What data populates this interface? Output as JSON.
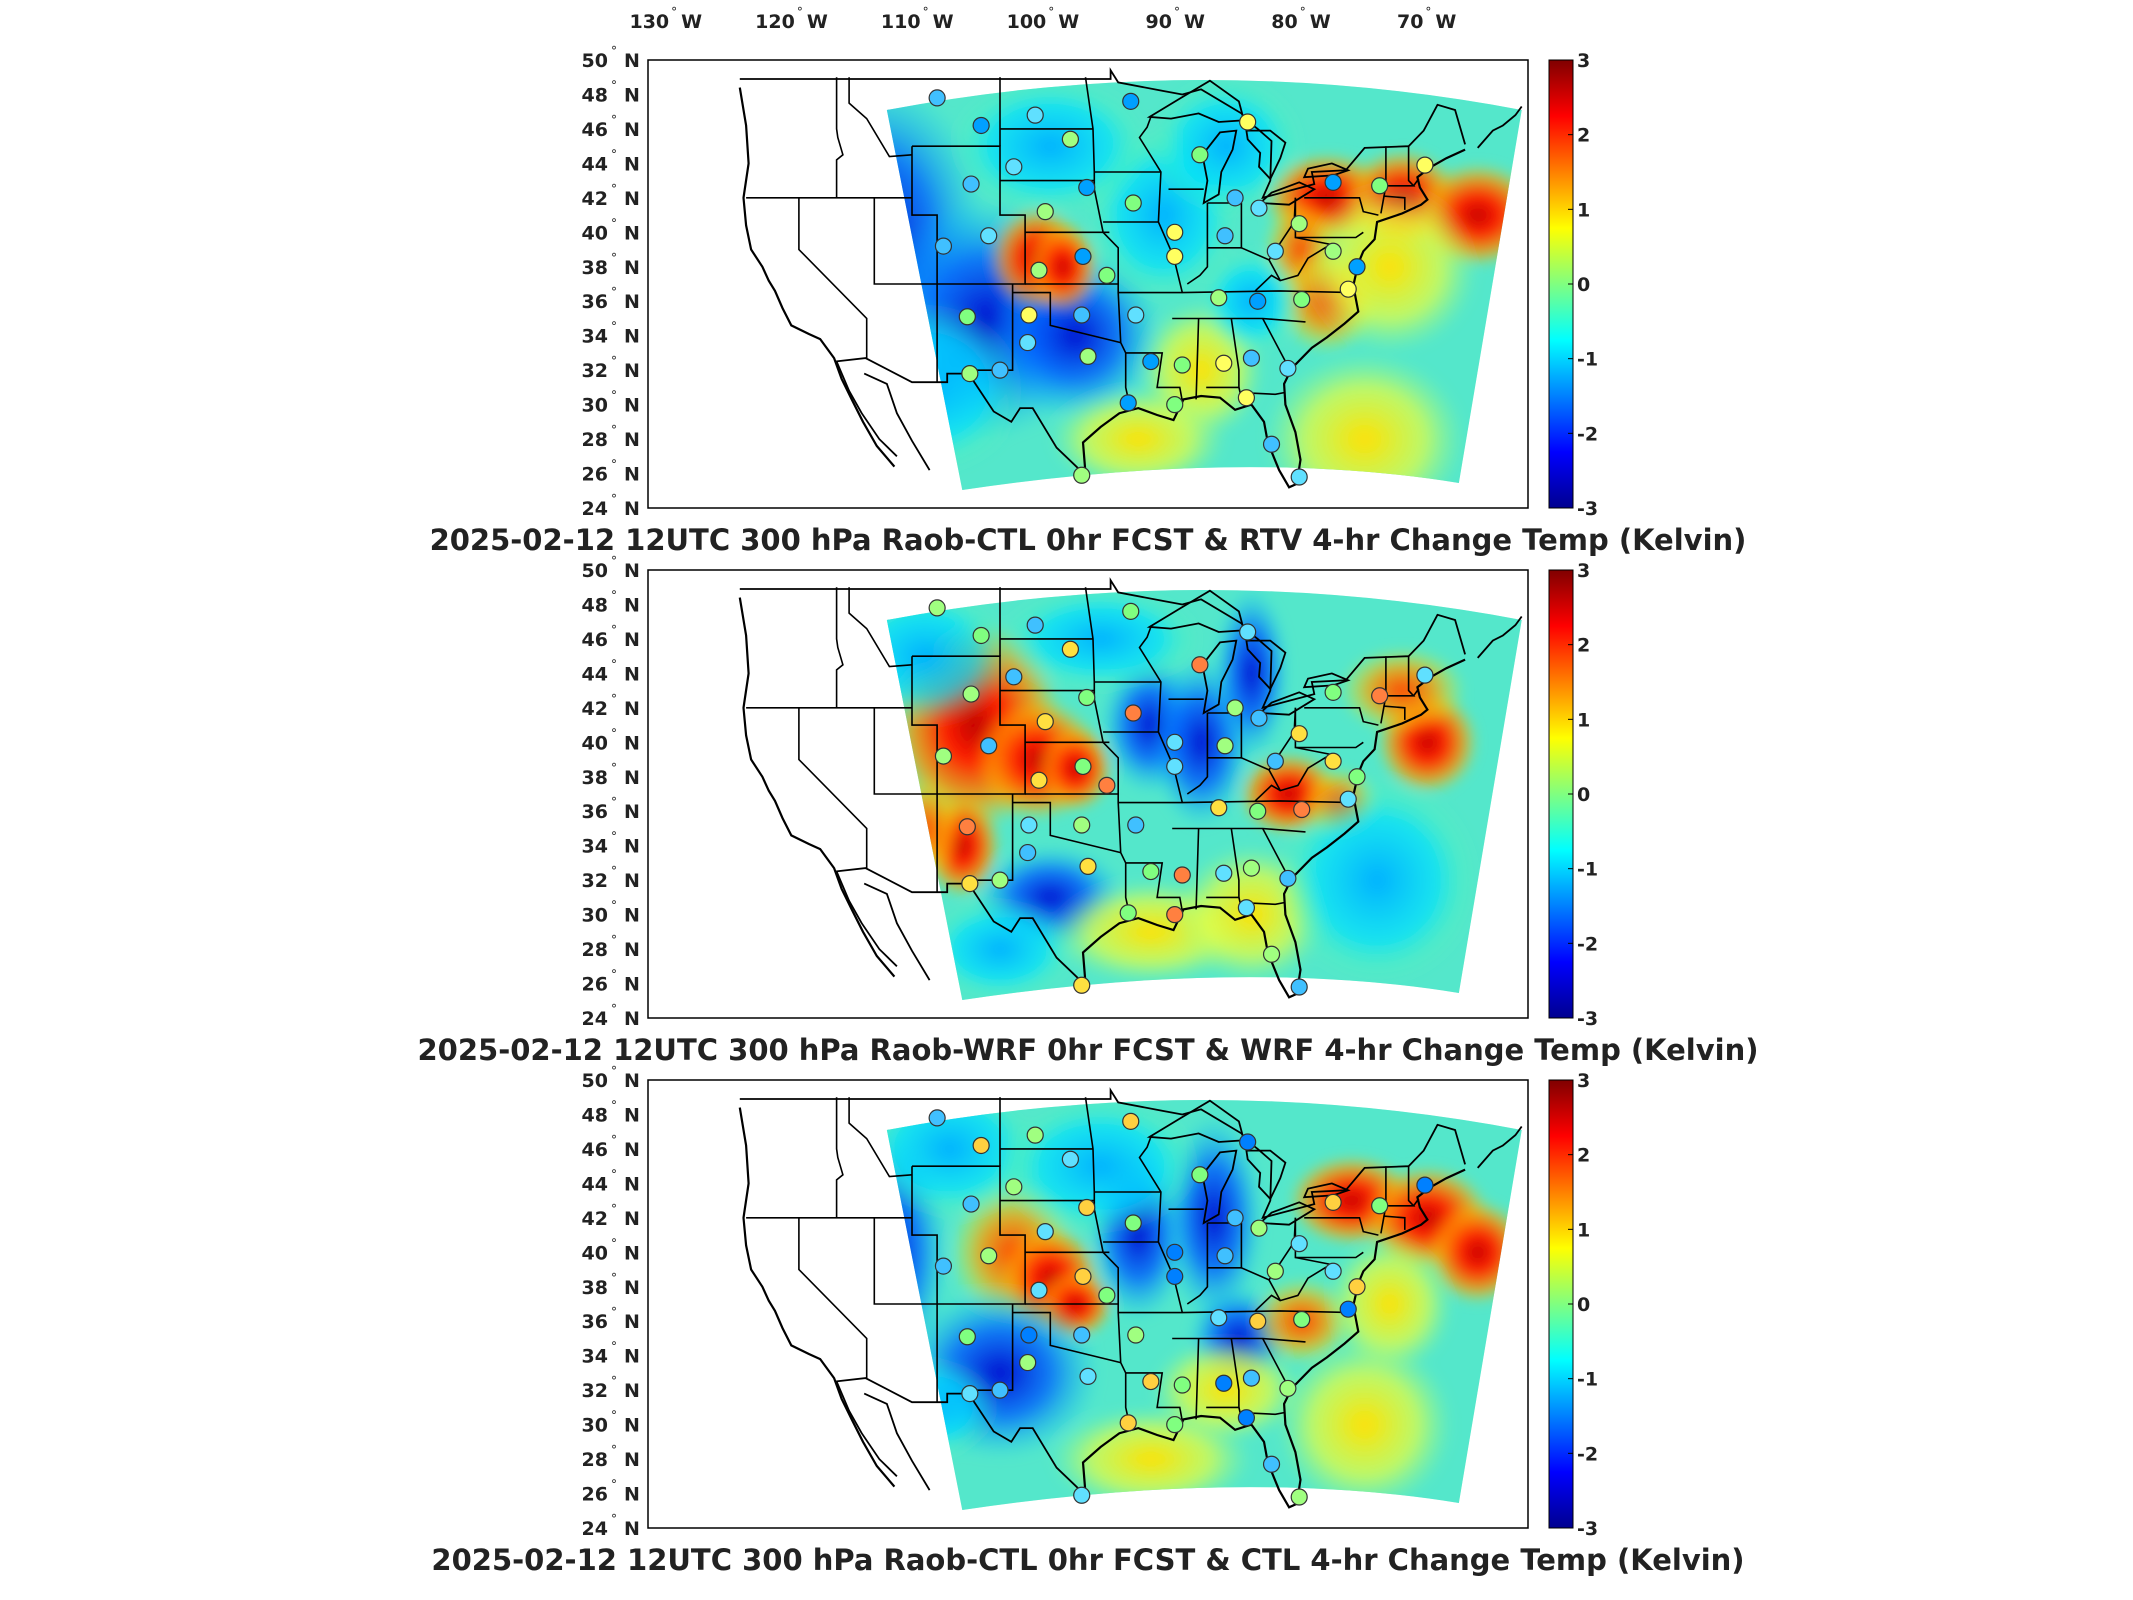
{
  "figure": {
    "top_axis_labels": [
      "130",
      "120",
      "110",
      "100",
      "90",
      "80",
      "70"
    ],
    "longitude_suffix": "W",
    "latitude_suffix": "N",
    "degree_symbol": "°"
  },
  "panels": [
    {
      "id": "panel-1",
      "title": "2025-02-12 12UTC 300 hPa Raob-CTL 0hr FCST & RTV 4-hr Change Temp (Kelvin)"
    },
    {
      "id": "panel-2",
      "title": "2025-02-12 12UTC 300 hPa Raob-WRF 0hr FCST & WRF 4-hr Change Temp (Kelvin)"
    },
    {
      "id": "panel-3",
      "title": "2025-02-12 12UTC 300 hPa Raob-CTL 0hr FCST & CTL 4-hr Change Temp (Kelvin)"
    }
  ],
  "latitude_labels": [
    "50",
    "48",
    "46",
    "44",
    "42",
    "40",
    "38",
    "36",
    "34",
    "32",
    "30",
    "28",
    "26",
    "24"
  ],
  "colorbar": {
    "ticks": [
      "3",
      "2",
      "1",
      "0",
      "-1",
      "-2",
      "-3"
    ],
    "range": [
      -3,
      3
    ],
    "colormap": [
      "#00008f",
      "#0000ff",
      "#0080ff",
      "#00ffff",
      "#80ff80",
      "#ffff00",
      "#ff8000",
      "#ff0000",
      "#800000"
    ]
  },
  "colors": {
    "coastline": "#000000",
    "frame": "#000000",
    "text": "#222222",
    "station_outline": "#333333"
  }
}
